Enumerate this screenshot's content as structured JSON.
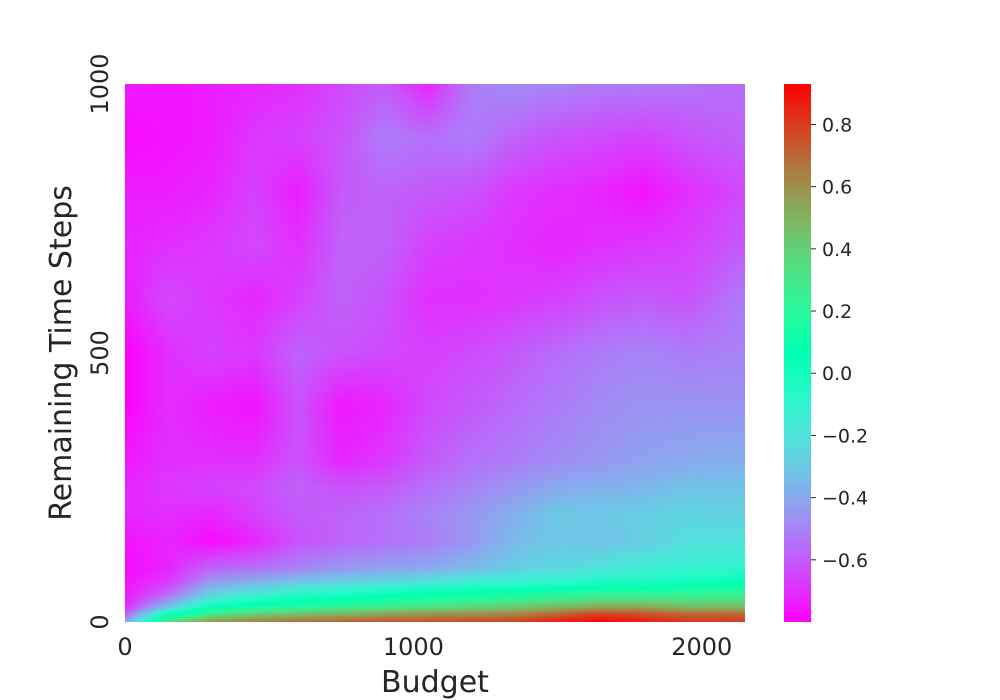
{
  "chart_data": {
    "type": "heatmap",
    "title": "",
    "xlabel": "Budget",
    "ylabel": "Remaining Time Steps",
    "xlim": [
      0,
      2150
    ],
    "ylim": [
      0,
      1000
    ],
    "x_ticks": [
      0,
      1000,
      2000
    ],
    "y_ticks": [
      0,
      500,
      1000
    ],
    "x_tick_labels": [
      "0",
      "1000",
      "2000"
    ],
    "y_tick_labels": [
      "0",
      "500",
      "1000"
    ],
    "colorbar": {
      "min": -0.8,
      "max": 0.93,
      "ticks": [
        -0.6,
        -0.4,
        -0.2,
        0.0,
        0.2,
        0.4,
        0.6,
        0.8
      ],
      "tick_labels": [
        "−0.6",
        "−0.4",
        "−0.2",
        "0.0",
        "0.2",
        "0.4",
        "0.6",
        "0.8"
      ],
      "colormap": "rainbow"
    },
    "grid": false,
    "x": [
      0,
      150,
      300,
      450,
      600,
      750,
      900,
      1050,
      1200,
      1350,
      1500,
      1650,
      1800,
      1950,
      2150
    ],
    "y": [
      0,
      15,
      30,
      50,
      75,
      100,
      150,
      200,
      250,
      300,
      400,
      500,
      600,
      700,
      800,
      900,
      1000
    ],
    "z": [
      [
        -0.42,
        0.35,
        0.6,
        0.65,
        0.7,
        0.72,
        0.75,
        0.76,
        0.78,
        0.8,
        0.88,
        0.92,
        0.88,
        0.82,
        0.8
      ],
      [
        -0.6,
        0.0,
        0.3,
        0.4,
        0.45,
        0.5,
        0.55,
        0.58,
        0.6,
        0.62,
        0.7,
        0.78,
        0.75,
        0.7,
        0.7
      ],
      [
        -0.72,
        -0.35,
        0.0,
        0.1,
        0.15,
        0.2,
        0.25,
        0.3,
        0.35,
        0.4,
        0.45,
        0.5,
        0.5,
        0.45,
        0.45
      ],
      [
        -0.75,
        -0.55,
        -0.25,
        -0.15,
        -0.05,
        0.0,
        0.05,
        0.1,
        0.12,
        0.15,
        0.2,
        0.25,
        0.25,
        0.25,
        0.25
      ],
      [
        -0.76,
        -0.68,
        -0.45,
        -0.38,
        -0.32,
        -0.28,
        -0.25,
        -0.2,
        -0.15,
        -0.12,
        -0.1,
        -0.05,
        -0.05,
        0.0,
        0.05
      ],
      [
        -0.78,
        -0.72,
        -0.58,
        -0.55,
        -0.5,
        -0.45,
        -0.42,
        -0.4,
        -0.35,
        -0.28,
        -0.25,
        -0.2,
        -0.15,
        -0.12,
        -0.1
      ],
      [
        -0.76,
        -0.72,
        -0.78,
        -0.72,
        -0.62,
        -0.58,
        -0.55,
        -0.52,
        -0.45,
        -0.35,
        -0.3,
        -0.32,
        -0.28,
        -0.22,
        -0.2
      ],
      [
        -0.72,
        -0.7,
        -0.72,
        -0.66,
        -0.6,
        -0.58,
        -0.55,
        -0.5,
        -0.45,
        -0.38,
        -0.3,
        -0.3,
        -0.28,
        -0.25,
        -0.28
      ],
      [
        -0.72,
        -0.68,
        -0.66,
        -0.64,
        -0.58,
        -0.62,
        -0.6,
        -0.55,
        -0.5,
        -0.45,
        -0.4,
        -0.38,
        -0.36,
        -0.32,
        -0.32
      ],
      [
        -0.75,
        -0.7,
        -0.7,
        -0.7,
        -0.62,
        -0.72,
        -0.68,
        -0.6,
        -0.55,
        -0.52,
        -0.48,
        -0.45,
        -0.42,
        -0.4,
        -0.38
      ],
      [
        -0.8,
        -0.7,
        -0.74,
        -0.76,
        -0.62,
        -0.75,
        -0.72,
        -0.64,
        -0.6,
        -0.56,
        -0.52,
        -0.48,
        -0.46,
        -0.46,
        -0.46
      ],
      [
        -0.8,
        -0.7,
        -0.66,
        -0.68,
        -0.58,
        -0.62,
        -0.64,
        -0.66,
        -0.64,
        -0.6,
        -0.56,
        -0.52,
        -0.5,
        -0.52,
        -0.5
      ],
      [
        -0.74,
        -0.64,
        -0.68,
        -0.72,
        -0.66,
        -0.58,
        -0.62,
        -0.7,
        -0.7,
        -0.68,
        -0.66,
        -0.62,
        -0.6,
        -0.62,
        -0.52
      ],
      [
        -0.72,
        -0.7,
        -0.68,
        -0.64,
        -0.7,
        -0.58,
        -0.58,
        -0.66,
        -0.68,
        -0.7,
        -0.72,
        -0.7,
        -0.68,
        -0.66,
        -0.6
      ],
      [
        -0.74,
        -0.74,
        -0.72,
        -0.66,
        -0.74,
        -0.6,
        -0.58,
        -0.6,
        -0.62,
        -0.68,
        -0.7,
        -0.72,
        -0.76,
        -0.7,
        -0.64
      ],
      [
        -0.78,
        -0.76,
        -0.74,
        -0.68,
        -0.66,
        -0.62,
        -0.52,
        -0.55,
        -0.52,
        -0.58,
        -0.62,
        -0.64,
        -0.66,
        -0.62,
        -0.58
      ],
      [
        -0.74,
        -0.76,
        -0.74,
        -0.72,
        -0.7,
        -0.64,
        -0.6,
        -0.72,
        -0.52,
        -0.48,
        -0.5,
        -0.52,
        -0.52,
        -0.54,
        -0.56
      ]
    ]
  }
}
